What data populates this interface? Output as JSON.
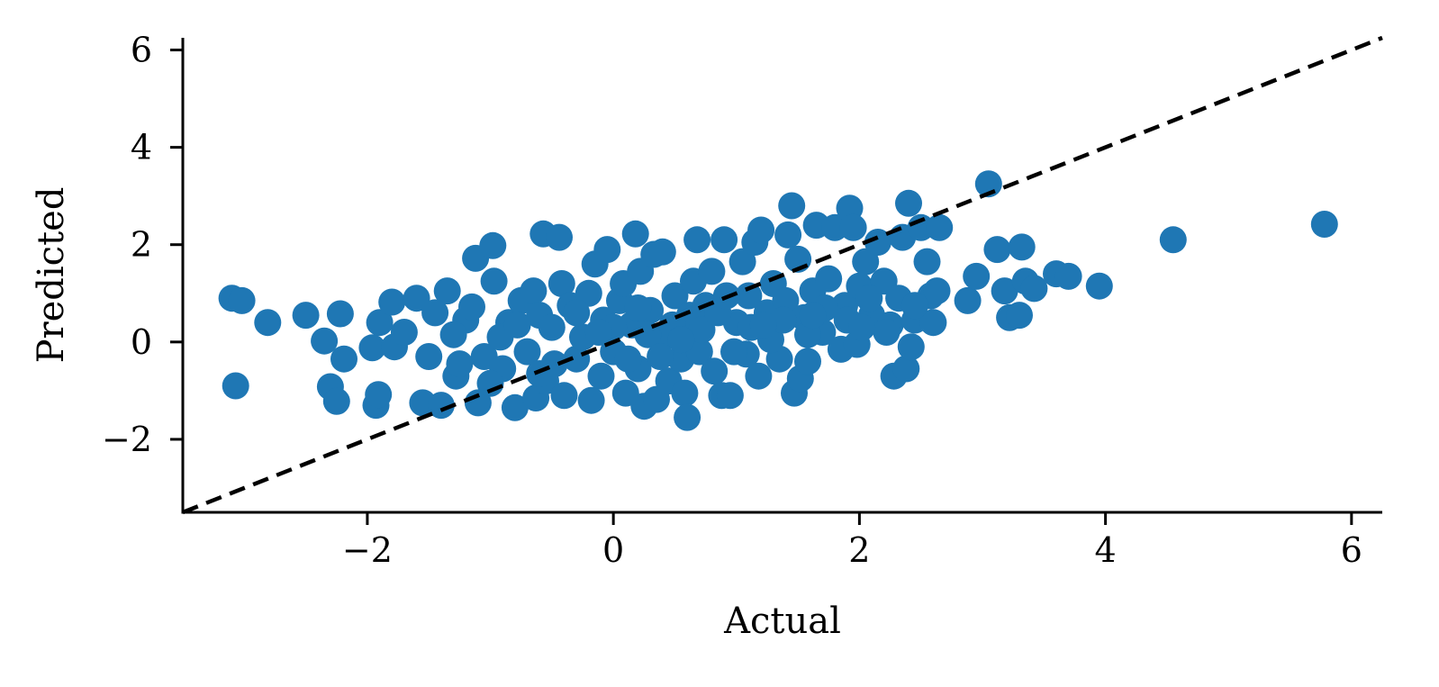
{
  "chart_data": {
    "type": "scatter",
    "title": "",
    "xlabel": "Actual",
    "ylabel": "Predicted",
    "xlim": [
      -3.5,
      6.25
    ],
    "ylim": [
      -3.5,
      6.25
    ],
    "xticks": [
      -2,
      0,
      2,
      4,
      6
    ],
    "yticks": [
      -2,
      0,
      2,
      4,
      6
    ],
    "xtick_labels": [
      "−2",
      "0",
      "2",
      "4",
      "6"
    ],
    "ytick_labels": [
      "−2",
      "0",
      "2",
      "4",
      "6"
    ],
    "grid": false,
    "legend": null,
    "colors": {
      "points": "#1f77b4",
      "reference_line": "#000000",
      "axes": "#000000"
    },
    "reference_line": {
      "style": "dashed",
      "description": "y = x",
      "from": [
        -3.5,
        -3.5
      ],
      "to": [
        6.25,
        6.25
      ]
    },
    "series": [
      {
        "points": [
          [
            -3.1,
            0.9
          ],
          [
            -3.02,
            0.85
          ],
          [
            -3.07,
            -0.9
          ],
          [
            -2.81,
            0.4
          ],
          [
            -2.5,
            0.55
          ],
          [
            -2.35,
            0.02
          ],
          [
            -2.3,
            -0.92
          ],
          [
            -2.25,
            -1.22
          ],
          [
            -2.22,
            0.58
          ],
          [
            -2.19,
            -0.35
          ],
          [
            -1.96,
            -0.12
          ],
          [
            -1.93,
            -1.3
          ],
          [
            -1.91,
            -1.08
          ],
          [
            -1.9,
            0.4
          ],
          [
            -1.8,
            0.82
          ],
          [
            -1.78,
            -0.1
          ],
          [
            -1.6,
            0.9
          ],
          [
            -1.55,
            -1.25
          ],
          [
            -1.5,
            -0.3
          ],
          [
            -1.4,
            -1.3
          ],
          [
            -1.35,
            1.05
          ],
          [
            -1.28,
            -0.7
          ],
          [
            -1.2,
            0.45
          ],
          [
            -1.15,
            0.72
          ],
          [
            -1.12,
            1.72
          ],
          [
            -1.1,
            -1.25
          ],
          [
            -1.05,
            -0.3
          ],
          [
            -0.98,
            1.98
          ],
          [
            -0.97,
            1.25
          ],
          [
            -0.9,
            -0.55
          ],
          [
            -0.85,
            0.4
          ],
          [
            -0.8,
            -1.35
          ],
          [
            -0.75,
            0.85
          ],
          [
            -0.7,
            -0.2
          ],
          [
            -0.65,
            1.05
          ],
          [
            -0.63,
            -1.15
          ],
          [
            -0.6,
            0.55
          ],
          [
            -0.57,
            2.22
          ],
          [
            -0.55,
            -0.8
          ],
          [
            -0.5,
            0.3
          ],
          [
            -0.44,
            2.15
          ],
          [
            -0.42,
            1.2
          ],
          [
            -0.4,
            -1.1
          ],
          [
            -0.35,
            0.75
          ],
          [
            -0.3,
            -0.35
          ],
          [
            -0.25,
            0.1
          ],
          [
            -0.2,
            1.0
          ],
          [
            -0.18,
            -1.2
          ],
          [
            -0.15,
            1.6
          ],
          [
            -0.1,
            -0.7
          ],
          [
            -0.08,
            0.45
          ],
          [
            -0.05,
            1.9
          ],
          [
            0.0,
            -0.2
          ],
          [
            0.05,
            0.85
          ],
          [
            0.08,
            1.2
          ],
          [
            0.1,
            -1.05
          ],
          [
            0.15,
            0.35
          ],
          [
            0.18,
            2.22
          ],
          [
            0.2,
            -0.55
          ],
          [
            0.22,
            1.45
          ],
          [
            0.25,
            -1.32
          ],
          [
            0.3,
            0.65
          ],
          [
            0.33,
            1.8
          ],
          [
            0.35,
            -1.18
          ],
          [
            0.4,
            1.85
          ],
          [
            0.42,
            0.1
          ],
          [
            0.45,
            -0.8
          ],
          [
            0.5,
            0.95
          ],
          [
            0.55,
            -0.35
          ],
          [
            0.58,
            -1.05
          ],
          [
            0.6,
            -1.55
          ],
          [
            0.62,
            0.55
          ],
          [
            0.65,
            1.25
          ],
          [
            0.68,
            2.1
          ],
          [
            0.7,
            -0.2
          ],
          [
            0.75,
            0.75
          ],
          [
            0.8,
            1.45
          ],
          [
            0.82,
            -0.6
          ],
          [
            0.88,
            -1.1
          ],
          [
            0.9,
            2.1
          ],
          [
            0.95,
            -1.1
          ],
          [
            1.0,
            0.4
          ],
          [
            1.05,
            1.65
          ],
          [
            1.08,
            -0.25
          ],
          [
            1.1,
            0.95
          ],
          [
            1.15,
            2.05
          ],
          [
            1.18,
            -0.7
          ],
          [
            1.2,
            2.3
          ],
          [
            1.25,
            0.6
          ],
          [
            1.3,
            1.2
          ],
          [
            1.35,
            -0.35
          ],
          [
            1.4,
            0.85
          ],
          [
            1.42,
            2.2
          ],
          [
            1.45,
            2.8
          ],
          [
            1.47,
            -1.05
          ],
          [
            1.5,
            1.7
          ],
          [
            1.52,
            -0.75
          ],
          [
            1.55,
            0.5
          ],
          [
            1.58,
            -0.4
          ],
          [
            1.62,
            1.05
          ],
          [
            1.65,
            2.4
          ],
          [
            1.7,
            0.2
          ],
          [
            1.75,
            1.3
          ],
          [
            1.8,
            2.35
          ],
          [
            1.85,
            -0.15
          ],
          [
            1.88,
            0.75
          ],
          [
            1.92,
            2.75
          ],
          [
            1.95,
            2.35
          ],
          [
            1.98,
            -0.05
          ],
          [
            2.0,
            1.15
          ],
          [
            2.05,
            1.65
          ],
          [
            2.1,
            0.55
          ],
          [
            2.15,
            2.05
          ],
          [
            2.2,
            1.25
          ],
          [
            2.25,
            0.35
          ],
          [
            2.28,
            -0.7
          ],
          [
            2.32,
            0.9
          ],
          [
            2.35,
            2.15
          ],
          [
            2.38,
            -0.55
          ],
          [
            2.4,
            2.85
          ],
          [
            2.42,
            -0.1
          ],
          [
            2.45,
            0.45
          ],
          [
            2.5,
            2.35
          ],
          [
            2.55,
            1.65
          ],
          [
            2.58,
            0.95
          ],
          [
            2.6,
            0.4
          ],
          [
            2.63,
            1.05
          ],
          [
            2.65,
            2.35
          ],
          [
            2.88,
            0.85
          ],
          [
            2.95,
            1.35
          ],
          [
            3.05,
            3.25
          ],
          [
            3.12,
            1.9
          ],
          [
            3.18,
            1.05
          ],
          [
            3.22,
            0.5
          ],
          [
            3.3,
            0.55
          ],
          [
            3.32,
            1.95
          ],
          [
            3.35,
            1.25
          ],
          [
            3.42,
            1.1
          ],
          [
            3.6,
            1.4
          ],
          [
            3.7,
            1.35
          ],
          [
            3.95,
            1.15
          ],
          [
            4.55,
            2.1
          ],
          [
            5.78,
            2.42
          ],
          [
            -1.45,
            0.6
          ],
          [
            -1.3,
            0.15
          ],
          [
            -1.0,
            -0.85
          ],
          [
            -0.92,
            0.1
          ],
          [
            -0.6,
            -0.65
          ],
          [
            -0.3,
            0.6
          ],
          [
            0.0,
            0.3
          ],
          [
            0.12,
            -0.35
          ],
          [
            0.28,
            0.15
          ],
          [
            0.38,
            -0.3
          ],
          [
            0.48,
            0.35
          ],
          [
            0.72,
            0.25
          ],
          [
            0.85,
            0.6
          ],
          [
            0.98,
            -0.2
          ],
          [
            1.12,
            0.3
          ],
          [
            1.28,
            0.05
          ],
          [
            1.38,
            0.45
          ],
          [
            1.58,
            0.15
          ],
          [
            1.72,
            0.7
          ],
          [
            1.9,
            0.45
          ],
          [
            2.08,
            0.9
          ],
          [
            2.22,
            0.2
          ],
          [
            -1.7,
            0.2
          ],
          [
            -1.25,
            -0.45
          ],
          [
            -0.78,
            0.35
          ],
          [
            -0.48,
            -0.45
          ],
          [
            -0.12,
            0.2
          ],
          [
            0.2,
            0.7
          ],
          [
            0.55,
            0.05
          ],
          [
            0.92,
            0.95
          ],
          [
            1.22,
            0.35
          ],
          [
            1.62,
            0.55
          ],
          [
            2.02,
            0.3
          ],
          [
            2.45,
            0.75
          ]
        ]
      }
    ]
  }
}
